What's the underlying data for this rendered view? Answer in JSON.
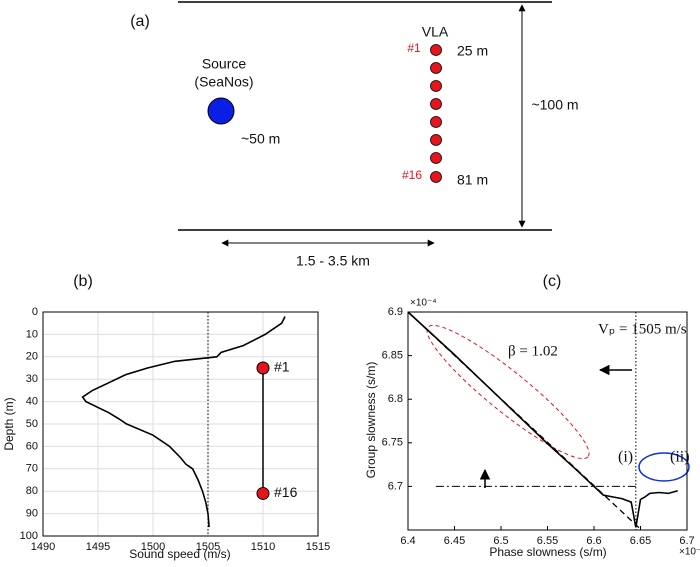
{
  "diagram": {
    "label": "(a)",
    "source": "Source",
    "source_sub": "(SeaNos)",
    "source_depth": "~50 m",
    "array": "VLA",
    "first": "#1",
    "first_depth": "25 m",
    "last": "#16",
    "last_depth": "81 m",
    "water_depth": "~100 m",
    "range": "1.5 - 3.5 km"
  },
  "chart_data": [
    {
      "type": "line",
      "panel_label": "(b)",
      "orient": "horizontal",
      "x_label": "Sound speed (m/s)",
      "y_label": "Depth (m)",
      "xlim": [
        1490,
        1515
      ],
      "xticks": [
        1490,
        1495,
        1500,
        1505,
        1510,
        1515
      ],
      "ylim": [
        0,
        100
      ],
      "yticks": [
        0,
        10,
        20,
        30,
        40,
        50,
        60,
        70,
        80,
        90,
        100
      ],
      "y_inverted": true,
      "grid": true,
      "x": [
        2,
        5,
        10,
        15,
        18,
        20,
        22,
        25,
        28,
        32,
        35,
        38,
        40,
        45,
        48,
        50,
        55,
        60,
        65,
        68,
        70,
        75,
        80,
        85,
        90,
        96
      ],
      "values": [
        1512,
        1511.7,
        1510.2,
        1508.2,
        1506.2,
        1505.8,
        1502,
        1499.5,
        1497.5,
        1495.8,
        1494.5,
        1493.6,
        1493.9,
        1496,
        1497,
        1497.6,
        1500,
        1501.5,
        1502.5,
        1503,
        1503.6,
        1504.1,
        1504.5,
        1504.8,
        1505,
        1505.1
      ],
      "color": "#000000",
      "vline": 1505,
      "array": {
        "x": 1510,
        "depths": [
          25,
          81
        ],
        "labels": [
          "#1",
          "#16"
        ],
        "color": "#e8141b"
      }
    },
    {
      "type": "line",
      "panel_label": "(c)",
      "x_label": "Phase slowness (s/m)",
      "y_label": "Group slowness (s/m)",
      "exponent": "×10⁻⁴",
      "xlim": [
        6.4,
        6.7
      ],
      "xticks": [
        6.4,
        6.45,
        6.5,
        6.55,
        6.6,
        6.65,
        6.7
      ],
      "ylim": [
        6.65,
        6.9
      ],
      "yticks": [
        6.7,
        6.75,
        6.8,
        6.85,
        6.9
      ],
      "grid": false,
      "series": [
        {
          "style": "solid",
          "color": "#000000",
          "x": [
            6.4,
            6.45,
            6.5,
            6.55,
            6.58,
            6.6,
            6.61,
            6.62,
            6.63,
            6.64,
            6.645,
            6.65,
            6.655,
            6.66,
            6.67,
            6.68,
            6.69
          ],
          "values": [
            6.9,
            6.851,
            6.8,
            6.749,
            6.72,
            6.7,
            6.69,
            6.688,
            6.686,
            6.682,
            6.653,
            6.685,
            6.688,
            6.692,
            6.693,
            6.692,
            6.695
          ]
        },
        {
          "style": "dashed",
          "color": "#000000",
          "x": [
            6.4,
            6.65
          ],
          "values": [
            6.9,
            6.651
          ]
        }
      ],
      "vline": 6.645,
      "hline": {
        "y": 6.7,
        "x": [
          6.43,
          6.645
        ]
      },
      "annotations": [
        "Vₚ = 1505 m/s",
        "β = 1.02",
        "(i)",
        "(ii)"
      ]
    }
  ]
}
